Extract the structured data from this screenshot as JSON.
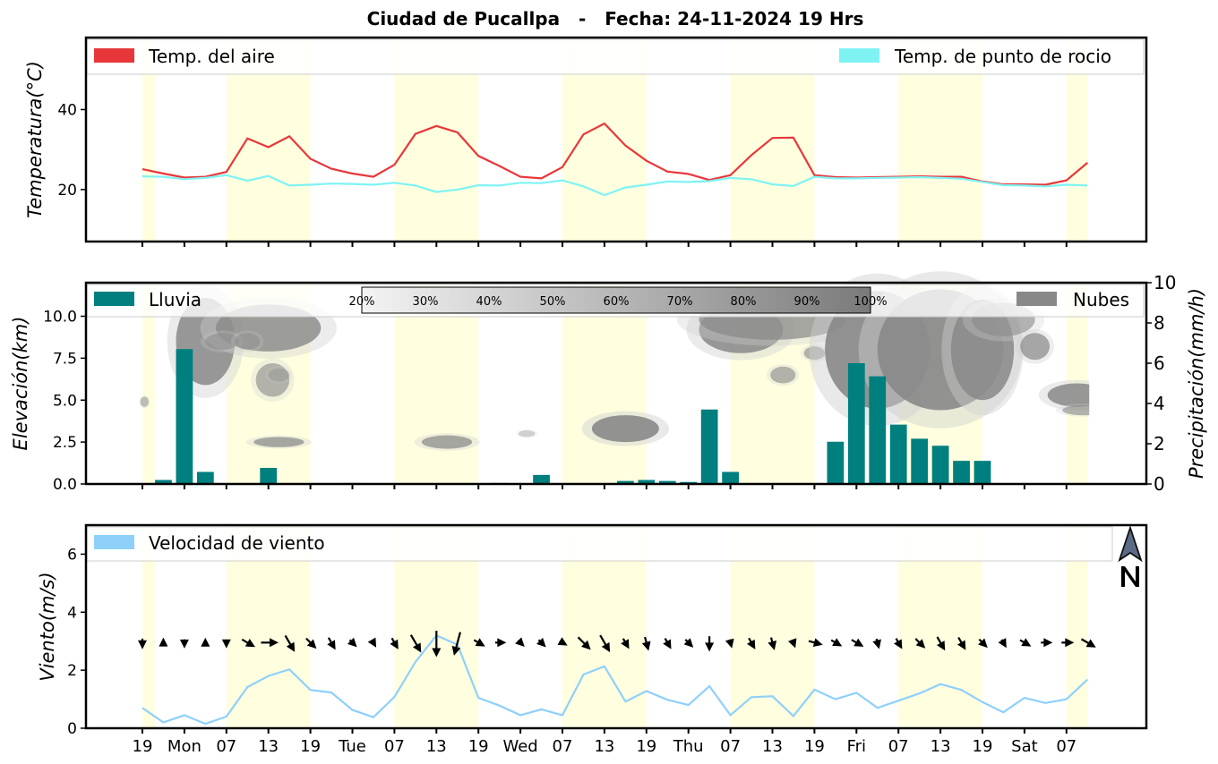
{
  "title": "Ciudad de Pucallpa   -   Fecha: 24-11-2024 19 Hrs",
  "x_tick_labels": [
    "19",
    "Mon",
    "07",
    "13",
    "19",
    "Tue",
    "07",
    "13",
    "19",
    "Wed",
    "07",
    "13",
    "19",
    "Thu",
    "07",
    "13",
    "19",
    "Fri",
    "07",
    "13",
    "19",
    "Sat",
    "07"
  ],
  "colors": {
    "air_temp": "#e8373a",
    "dew_point": "#7ff3f3",
    "rain": "#007f7f",
    "clouds": "#888888",
    "wind": "#8fd0fb",
    "day_shade": "#ffffe0"
  },
  "chart_data": [
    {
      "type": "line",
      "panel": "temperature",
      "ylabel": "Temperatura(°C)",
      "ylim": [
        7,
        58
      ],
      "yticks": [
        20,
        40
      ],
      "legend_placement": "top",
      "series": [
        {
          "name": "Temp. del aire",
          "values": [
            25.1,
            24.0,
            23.0,
            23.2,
            24.4,
            32.8,
            30.6,
            33.3,
            27.7,
            25.2,
            24.0,
            23.2,
            26.2,
            33.9,
            35.9,
            34.3,
            28.4,
            25.9,
            23.2,
            22.8,
            25.6,
            33.8,
            36.5,
            31.0,
            27.2,
            24.5,
            23.9,
            22.4,
            23.6,
            28.6,
            32.9,
            33.0,
            23.6,
            23.1,
            23.0,
            23.1,
            23.2,
            23.3,
            23.2,
            23.2,
            22.0,
            21.3,
            21.3,
            21.2,
            22.3,
            26.7
          ]
        },
        {
          "name": "Temp. de punto de rocio",
          "values": [
            23.3,
            23.2,
            22.6,
            22.9,
            23.6,
            22.2,
            23.4,
            21.0,
            21.2,
            21.5,
            21.4,
            21.2,
            21.7,
            21.0,
            19.4,
            20.0,
            21.1,
            21.0,
            21.7,
            21.6,
            22.3,
            20.8,
            18.6,
            20.5,
            21.2,
            22.0,
            21.9,
            22.1,
            22.9,
            22.6,
            21.3,
            20.9,
            23.2,
            22.8,
            22.8,
            22.9,
            23.0,
            23.1,
            22.9,
            22.7,
            21.9,
            21.1,
            21.0,
            20.8,
            21.2,
            21.0
          ]
        }
      ]
    },
    {
      "type": "bar",
      "panel": "precipitation",
      "ylabel": "Elevación(km)",
      "y2label": "Precipitación(mm/h)",
      "ylim": [
        0,
        12
      ],
      "yticks": [
        0.0,
        2.5,
        5.0,
        7.5,
        10.0
      ],
      "y2lim": [
        0,
        10
      ],
      "y2ticks": [
        0,
        2,
        4,
        6,
        8,
        10
      ],
      "cloud_colorbar_labels": [
        "20%",
        "30%",
        "40%",
        "50%",
        "60%",
        "70%",
        "80%",
        "90%",
        "100%"
      ],
      "series": [
        {
          "name": "Lluvia",
          "values": [
            0,
            0.2,
            6.7,
            0.6,
            0,
            0,
            0.8,
            0,
            0,
            0,
            0.05,
            0,
            0,
            0,
            0,
            0,
            0,
            0.05,
            0,
            0.45,
            0,
            0,
            0,
            0.15,
            0.2,
            0.15,
            0.1,
            3.7,
            0.6,
            0,
            0,
            0,
            0,
            2.1,
            6.0,
            5.35,
            2.95,
            2.25,
            1.9,
            1.15,
            1.15,
            0,
            0,
            0,
            0,
            0
          ]
        },
        {
          "name": "Nubes",
          "values": []
        }
      ]
    },
    {
      "type": "line",
      "panel": "wind",
      "ylabel": "Viento(m/s)",
      "ylim": [
        0,
        7
      ],
      "yticks": [
        0,
        2,
        4,
        6
      ],
      "series": [
        {
          "name": "Velocidad de viento",
          "values": [
            0.7,
            0.2,
            0.45,
            0.15,
            0.4,
            1.42,
            1.8,
            2.03,
            1.32,
            1.23,
            0.63,
            0.38,
            1.08,
            2.28,
            3.2,
            2.88,
            1.05,
            0.78,
            0.45,
            0.65,
            0.45,
            1.85,
            2.13,
            0.92,
            1.28,
            0.98,
            0.8,
            1.45,
            0.45,
            1.07,
            1.1,
            0.42,
            1.33,
            1.0,
            1.22,
            0.7,
            0.95,
            1.2,
            1.52,
            1.32,
            0.9,
            0.55,
            1.05,
            0.87,
            1.0,
            1.68
          ]
        }
      ],
      "wind_direction_deg": [
        0,
        180,
        0,
        180,
        0,
        300,
        270,
        330,
        315,
        330,
        315,
        330,
        330,
        330,
        0,
        15,
        300,
        270,
        315,
        315,
        300,
        315,
        330,
        330,
        345,
        330,
        315,
        0,
        345,
        330,
        345,
        340,
        285,
        300,
        300,
        345,
        330,
        315,
        330,
        330,
        315,
        330,
        300,
        270,
        270,
        300
      ]
    }
  ]
}
